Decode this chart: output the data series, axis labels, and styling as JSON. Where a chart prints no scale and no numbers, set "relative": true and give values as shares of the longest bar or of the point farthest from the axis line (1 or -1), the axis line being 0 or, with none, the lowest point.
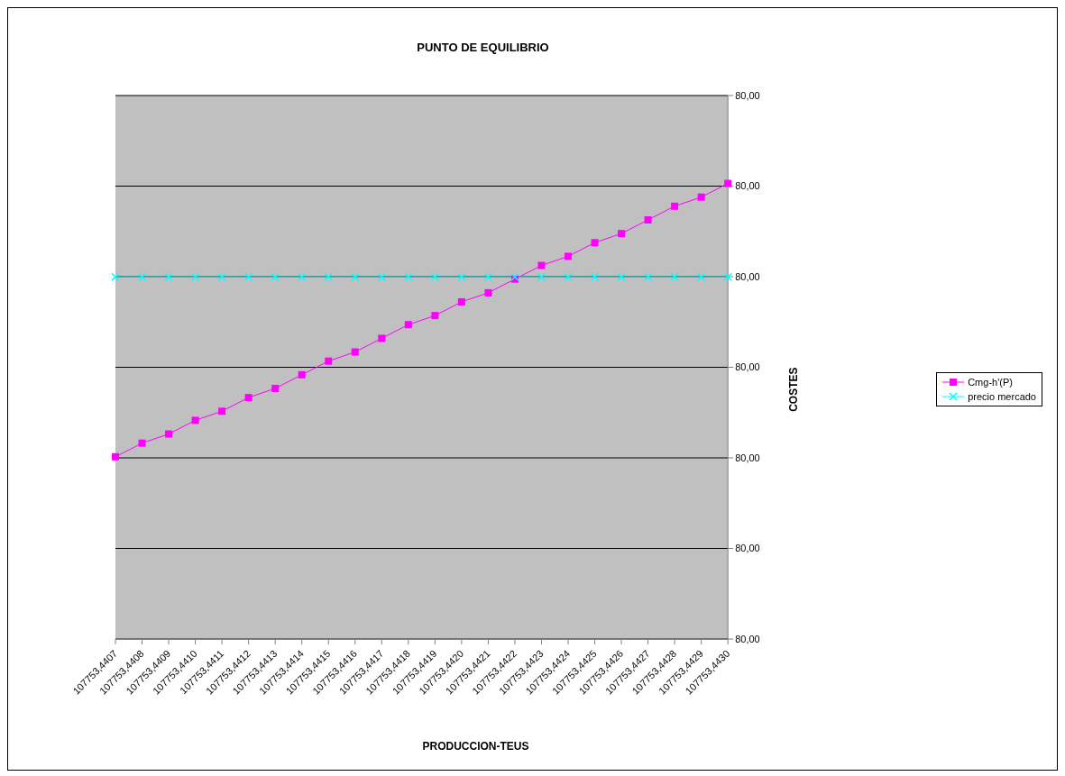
{
  "chart_data": {
    "type": "line",
    "title": "PUNTO DE EQUILIBRIO",
    "xlabel": "PRODUCCION-TEUS",
    "relative": true,
    "categories": [
      "107753,4407",
      "107753,4408",
      "107753,4409",
      "107753,4410",
      "107753,4411",
      "107753,4412",
      "107753,4413",
      "107753,4414",
      "107753,4415",
      "107753,4416",
      "107753,4417",
      "107753,4418",
      "107753,4419",
      "107753,4420",
      "107753,4421",
      "107753,4422",
      "107753,4423",
      "107753,4424",
      "107753,4425",
      "107753,4426",
      "107753,4427",
      "107753,4428",
      "107753,4429",
      "107753,4430"
    ],
    "annotations": [
      "COSTES",
      "80,00",
      "80,00",
      "80,00",
      "80,00",
      "80,00",
      "80,00",
      "80,00"
    ],
    "grid": "y",
    "legend": "right",
    "series": [
      {
        "name": "Cmg-h'(P)",
        "color": "#ff00ff",
        "marker": "square",
        "values": [
          0.4,
          0.43,
          0.45,
          0.48,
          0.5,
          0.53,
          0.55,
          0.58,
          0.61,
          0.63,
          0.66,
          0.69,
          0.71,
          0.74,
          0.76,
          0.79,
          0.82,
          0.84,
          0.87,
          0.89,
          0.92,
          0.95,
          0.97,
          1.0
        ]
      },
      {
        "name": "precio mercado",
        "color": "#00ffff",
        "marker": "cross",
        "values": [
          0.795,
          0.795,
          0.795,
          0.795,
          0.795,
          0.795,
          0.795,
          0.795,
          0.795,
          0.795,
          0.795,
          0.795,
          0.795,
          0.795,
          0.795,
          0.795,
          0.795,
          0.795,
          0.795,
          0.795,
          0.795,
          0.795,
          0.795,
          0.795
        ]
      }
    ]
  }
}
